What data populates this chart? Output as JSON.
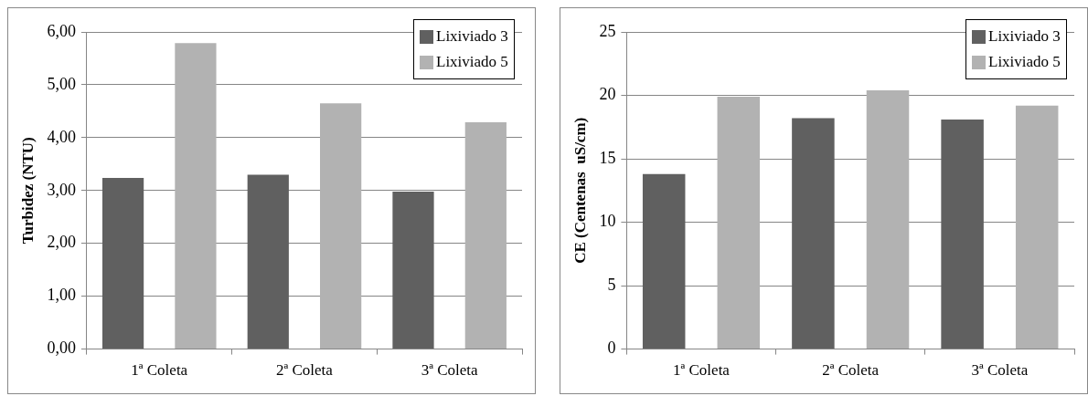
{
  "chart_data": [
    {
      "type": "bar",
      "ylabel": "Turbidez (NTU)",
      "categories": [
        "1ª Coleta",
        "2ª Coleta",
        "3ª Coleta"
      ],
      "series": [
        {
          "name": "Lixiviado 3",
          "color": "#606060",
          "values": [
            3.24,
            3.3,
            2.98
          ]
        },
        {
          "name": "Lixiviado 5",
          "color": "#b2b2b2",
          "values": [
            5.79,
            4.65,
            4.29
          ]
        }
      ],
      "ylim": [
        0,
        6
      ],
      "yticks": [
        {
          "value": 0,
          "label": "0,00"
        },
        {
          "value": 1,
          "label": "1,00"
        },
        {
          "value": 2,
          "label": "2,00"
        },
        {
          "value": 3,
          "label": "3,00"
        },
        {
          "value": 4,
          "label": "4,00"
        },
        {
          "value": 5,
          "label": "5,00"
        },
        {
          "value": 6,
          "label": "6,00"
        }
      ],
      "grid": "y",
      "legend": "top right"
    },
    {
      "type": "bar",
      "ylabel": "CE (Centenas  uS/cm)",
      "categories": [
        "1ª Coleta",
        "2ª Coleta",
        "3ª Coleta"
      ],
      "series": [
        {
          "name": "Lixiviado 3",
          "color": "#606060",
          "values": [
            13.8,
            18.2,
            18.1
          ]
        },
        {
          "name": "Lixiviado 5",
          "color": "#b2b2b2",
          "values": [
            19.9,
            20.4,
            19.2
          ]
        }
      ],
      "ylim": [
        0,
        25
      ],
      "yticks": [
        0,
        5,
        10,
        15,
        20,
        25
      ],
      "grid": "y",
      "legend": "top right"
    }
  ]
}
